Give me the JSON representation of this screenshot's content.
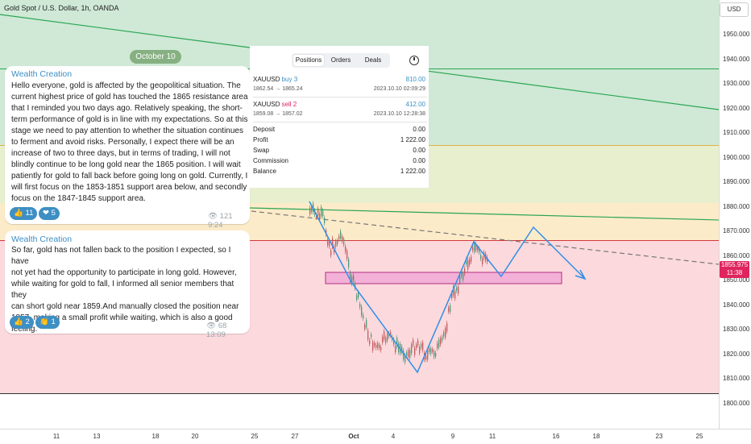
{
  "chart_title": "Gold Spot / U.S. Dollar, 1h, OANDA",
  "currency_button": "USD",
  "price_axis": [
    "1950.000",
    "1940.000",
    "1930.000",
    "1920.000",
    "1910.000",
    "1900.000",
    "1890.000",
    "1880.000",
    "1870.000",
    "1860.000",
    "1850.000",
    "1840.000",
    "1830.000",
    "1820.000",
    "1810.000",
    "1800.000"
  ],
  "current_price": {
    "value": "1855.975",
    "countdown": "11:38"
  },
  "date_axis": [
    {
      "label": "11",
      "bold": false
    },
    {
      "label": "13",
      "bold": false
    },
    {
      "label": "18",
      "bold": false
    },
    {
      "label": "20",
      "bold": false
    },
    {
      "label": "25",
      "bold": false
    },
    {
      "label": "27",
      "bold": false
    },
    {
      "label": "Oct",
      "bold": true
    },
    {
      "label": "4",
      "bold": false
    },
    {
      "label": "9",
      "bold": false
    },
    {
      "label": "11",
      "bold": false
    },
    {
      "label": "16",
      "bold": false
    },
    {
      "label": "18",
      "bold": false
    },
    {
      "label": "23",
      "bold": false
    },
    {
      "label": "25",
      "bold": false
    }
  ],
  "colors": {
    "green_zone": "#cfe9d6",
    "yellow_zone": "#e8efcf",
    "orange_zone": "#fcebc9",
    "red_zone": "#fcd9dd",
    "support_box": "#f0a3d6",
    "path_line": "#2f8fe8",
    "down": "#e0245e"
  },
  "telegram": {
    "date_pill": "October 10",
    "messages": [
      {
        "author": "Wealth Creation",
        "lines": [
          "Hello everyone, gold is affected by the geopolitical situation. The",
          "current highest price of gold has touched the 1865 resistance area",
          "that I reminded you two days ago. Relatively speaking, the short-",
          "term performance of gold is in line with my expectations. So at this",
          "stage we need to pay attention to whether the situation continues",
          "to ferment and avoid risks. Personally, I expect there will be an",
          "increase of two to three days, but in terms of trading, I will not",
          "blindly continue to be long gold near the 1865 position. I will wait",
          "patiently for gold to fall back before going long on gold. Currently, I",
          "will first focus on the 1853-1851 support area below, and secondly",
          "focus on the 1847-1845 support area."
        ],
        "reactions": [
          {
            "icon": "thumbs-up",
            "count": "11"
          },
          {
            "icon": "heart",
            "count": "5"
          }
        ],
        "views": "121",
        "time": "9:24"
      },
      {
        "author": "Wealth Creation",
        "lines": [
          "So far, gold has not fallen back to the position I expected, so I have",
          "not yet had the opportunity to participate in long gold. However,",
          "while waiting for gold to fall, I informed all senior members that they",
          "can short gold near 1859.And manually closed the position near",
          "1857, making a small profit while waiting, which is also a good",
          "feeling."
        ],
        "reactions": [
          {
            "icon": "thumbs-up",
            "count": "2"
          },
          {
            "icon": "clap",
            "count": "1"
          }
        ],
        "views": "68",
        "time": "13:09"
      }
    ]
  },
  "positions": {
    "tabs": [
      "Positions",
      "Orders",
      "Deals"
    ],
    "active_tab": "Positions",
    "trades": [
      {
        "symbol": "XAUUSD",
        "side": "buy 3",
        "profit": "810.00",
        "prices": "1862.54 → 1865.24",
        "time": "2023.10.10 02:09:29"
      },
      {
        "symbol": "XAUUSD",
        "side": "sell 2",
        "profit": "412.00",
        "prices": "1859.08 → 1857.02",
        "time": "2023.10.10 12:28:38"
      }
    ],
    "summary": [
      {
        "label": "Deposit",
        "value": "0.00"
      },
      {
        "label": "Profit",
        "value": "1 222.00"
      },
      {
        "label": "Swap",
        "value": "0.00"
      },
      {
        "label": "Commission",
        "value": "0.00"
      },
      {
        "label": "Balance",
        "value": "1 222.00"
      }
    ]
  }
}
